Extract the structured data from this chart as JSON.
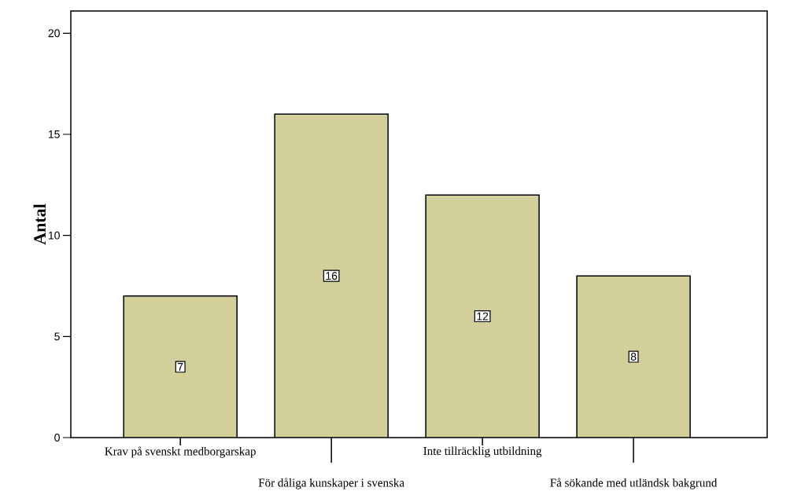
{
  "chart_data": {
    "type": "bar",
    "ylabel": "Antal",
    "categories": [
      "Krav på svenskt medborgarskap",
      "För dåliga kunskaper i svenska",
      "Inte tillräcklig utbildning",
      "Få sökande med utländsk bakgrund"
    ],
    "values": [
      7,
      16,
      12,
      8
    ],
    "color": "#d3cf9a",
    "ylim": [
      0,
      21.1
    ],
    "yticks": [
      0,
      5,
      10,
      15,
      20
    ],
    "grid": false,
    "data_labels": true
  }
}
